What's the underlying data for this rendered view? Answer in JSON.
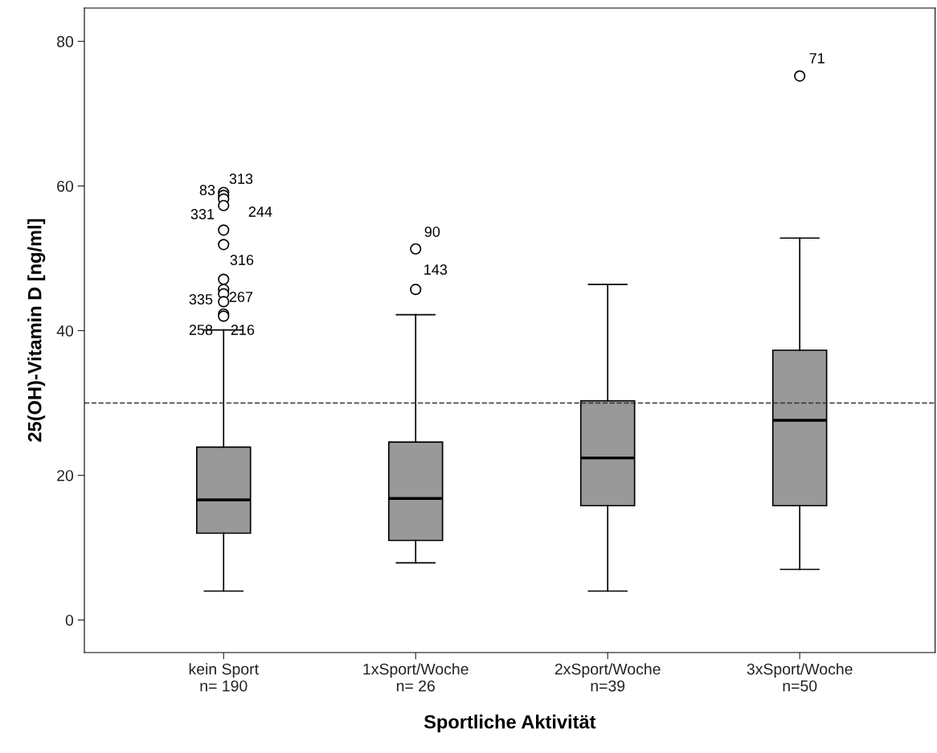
{
  "chart_data": {
    "type": "box",
    "xlabel": "Sportliche Aktivität",
    "ylabel": "25(OH)-Vitamin D [ng/ml]",
    "categories": [
      "kein Sport\nn= 190",
      "1xSport/Woche\nn= 26",
      "2xSport/Woche\nn=39",
      "3xSport/Woche\nn=50"
    ],
    "color": "#999999",
    "boxes": [
      {
        "low": 4.0,
        "q1": 12.0,
        "median": 16.6,
        "q3": 23.9,
        "high": 40.1,
        "outliers": [
          59.1,
          58.7,
          58.2,
          57.3,
          53.9,
          51.9,
          47.1,
          45.7,
          45.1,
          44.0,
          42.3,
          42.0
        ]
      },
      {
        "low": 7.9,
        "q1": 11.0,
        "median": 16.8,
        "q3": 24.6,
        "high": 42.2,
        "outliers": [
          51.3,
          45.7
        ]
      },
      {
        "low": 4.0,
        "q1": 15.8,
        "median": 22.4,
        "q3": 30.3,
        "high": 46.4
      },
      {
        "low": 7.0,
        "q1": 15.8,
        "median": 27.6,
        "q3": 37.3,
        "high": 52.8,
        "outliers": [
          75.2
        ]
      }
    ],
    "annotations": [
      "313",
      "83",
      "331",
      "244",
      "316",
      "335",
      "267",
      "258",
      "216",
      "90",
      "143",
      "71"
    ],
    "ref_lines": [
      {
        "axis": "y",
        "value": 30,
        "line_style": "dashed",
        "color": "#333333"
      }
    ],
    "ylim": [
      -4.5,
      84.6
    ],
    "yticks": [
      0,
      20,
      40,
      60,
      80
    ],
    "grid": false,
    "legend": false
  }
}
